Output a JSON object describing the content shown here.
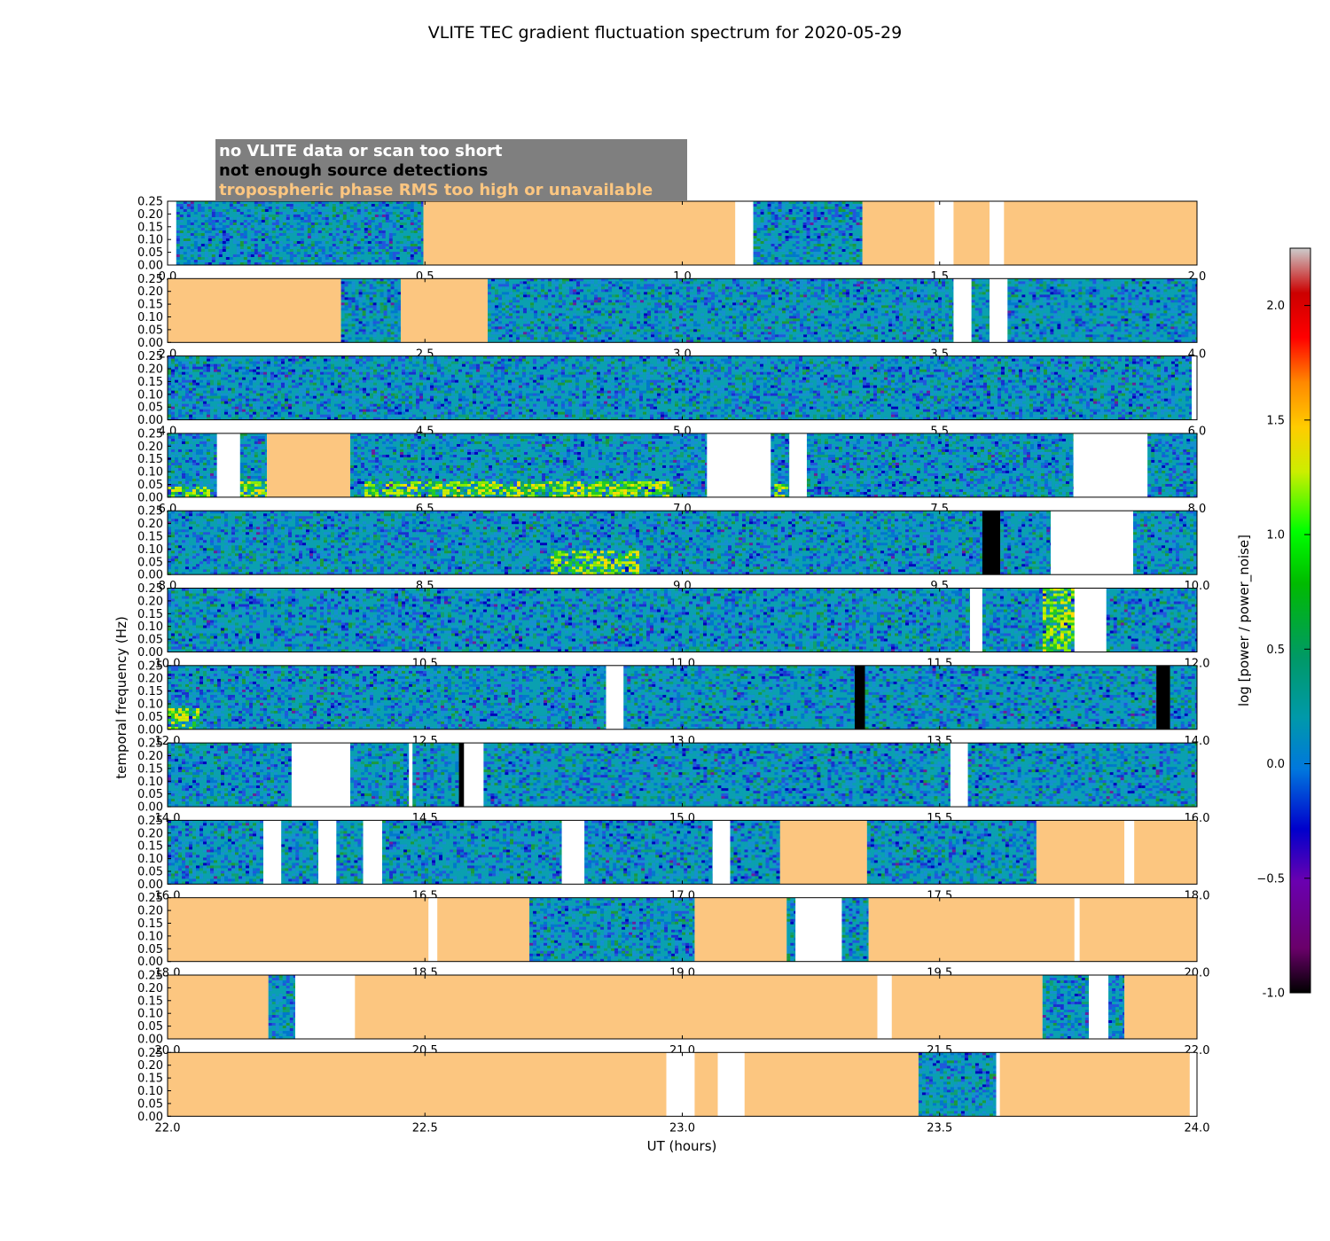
{
  "chart_data": {
    "type": "heatmap",
    "title": "VLITE TEC gradient fluctuation spectrum for 2020-05-29",
    "xlabel": "UT (hours)",
    "ylabel": "temporal frequency (Hz)",
    "colorbar_label": "log [power / power_noise]",
    "colorbar_range": [
      -1.0,
      2.25
    ],
    "colorbar_ticks": [
      "-1.0",
      "−0.5",
      "0.0",
      "0.5",
      "1.0",
      "1.5",
      "2.0"
    ],
    "ylim": [
      0,
      0.25
    ],
    "y_ticks": [
      "0.00",
      "0.05",
      "0.10",
      "0.15",
      "0.20",
      "0.25"
    ],
    "legend": [
      {
        "label": "no VLITE data or scan too short",
        "color": "#ffffff"
      },
      {
        "label": "not enough source detections",
        "color": "#000000"
      },
      {
        "label": "tropospheric phase RMS too high or unavailable",
        "color": "#fcc680"
      }
    ],
    "panels": [
      {
        "xlim": [
          0,
          2
        ],
        "x_ticks": [
          "0.0",
          "0.5",
          "1.0",
          "1.5",
          "2.0"
        ],
        "segments": [
          [
            "nodata",
            0,
            0.017
          ],
          [
            "data",
            0.017,
            0.497
          ],
          [
            "tropo",
            0.497,
            1.103
          ],
          [
            "nodata",
            1.103,
            1.138
          ],
          [
            "data",
            1.138,
            1.35
          ],
          [
            "tropo",
            1.35,
            1.49
          ],
          [
            "nodata",
            1.49,
            1.527
          ],
          [
            "tropo",
            1.527,
            1.597
          ],
          [
            "nodata",
            1.597,
            1.625
          ],
          [
            "tropo",
            1.625,
            2.0
          ]
        ]
      },
      {
        "xlim": [
          2,
          4
        ],
        "x_ticks": [
          "2.0",
          "2.5",
          "3.0",
          "3.5",
          "4.0"
        ],
        "segments": [
          [
            "tropo",
            2.0,
            2.337
          ],
          [
            "data",
            2.337,
            2.453
          ],
          [
            "tropo",
            2.453,
            2.622
          ],
          [
            "data",
            2.622,
            3.527
          ],
          [
            "nodata",
            3.527,
            3.562
          ],
          [
            "data",
            3.562,
            3.597
          ],
          [
            "nodata",
            3.597,
            3.632
          ],
          [
            "data",
            3.632,
            4.0
          ]
        ]
      },
      {
        "xlim": [
          4,
          6
        ],
        "x_ticks": [
          "4.0",
          "4.5",
          "5.0",
          "5.5",
          "6.0"
        ],
        "segments": [
          [
            "data",
            4.0,
            5.99
          ],
          [
            "nodata",
            5.99,
            6.0
          ]
        ]
      },
      {
        "xlim": [
          6,
          8
        ],
        "x_ticks": [
          "6.0",
          "6.5",
          "7.0",
          "7.5",
          "8.0"
        ],
        "segments": [
          [
            "data",
            6.0,
            6.096
          ],
          [
            "nodata",
            6.096,
            6.141
          ],
          [
            "data",
            6.141,
            6.193
          ],
          [
            "tropo",
            6.193,
            6.355
          ],
          [
            "data",
            6.355,
            7.048
          ],
          [
            "nodata",
            7.048,
            7.172
          ],
          [
            "data",
            7.172,
            7.208
          ],
          [
            "nodata",
            7.208,
            7.242
          ],
          [
            "data",
            7.242,
            7.76
          ],
          [
            "nodata",
            7.76,
            7.904
          ],
          [
            "data",
            7.904,
            8.0
          ]
        ]
      },
      {
        "xlim": [
          8,
          10
        ],
        "x_ticks": [
          "8.0",
          "8.5",
          "9.0",
          "9.5",
          "10.0"
        ],
        "segments": [
          [
            "data",
            8.0,
            9.583
          ],
          [
            "black",
            9.583,
            9.618
          ],
          [
            "data",
            9.618,
            9.716
          ],
          [
            "nodata",
            9.716,
            9.876
          ],
          [
            "data",
            9.876,
            10.0
          ]
        ]
      },
      {
        "xlim": [
          10,
          12
        ],
        "x_ticks": [
          "10.0",
          "10.5",
          "11.0",
          "11.5",
          "12.0"
        ],
        "segments": [
          [
            "data",
            10.0,
            11.559
          ],
          [
            "nodata",
            11.559,
            11.583
          ],
          [
            "data",
            11.583,
            11.762
          ],
          [
            "nodata",
            11.762,
            11.824
          ],
          [
            "data",
            11.824,
            12.0
          ]
        ]
      },
      {
        "xlim": [
          12,
          14
        ],
        "x_ticks": [
          "12.0",
          "12.5",
          "13.0",
          "13.5",
          "14.0"
        ],
        "segments": [
          [
            "data",
            12.0,
            12.852
          ],
          [
            "nodata",
            12.852,
            12.886
          ],
          [
            "data",
            12.886,
            13.335
          ],
          [
            "black",
            13.335,
            13.355
          ],
          [
            "data",
            13.355,
            13.921
          ],
          [
            "black",
            13.921,
            13.948
          ],
          [
            "data",
            13.948,
            14.0
          ]
        ]
      },
      {
        "xlim": [
          14,
          16
        ],
        "x_ticks": [
          "14.0",
          "14.5",
          "15.0",
          "15.5",
          "16.0"
        ],
        "segments": [
          [
            "data",
            14.0,
            14.241
          ],
          [
            "nodata",
            14.241,
            14.355
          ],
          [
            "data",
            14.355,
            14.469
          ],
          [
            "nodata",
            14.469,
            14.476
          ],
          [
            "data",
            14.476,
            14.566
          ],
          [
            "black",
            14.566,
            14.576
          ],
          [
            "nodata",
            14.576,
            14.614
          ],
          [
            "data",
            14.614,
            15.521
          ],
          [
            "nodata",
            15.521,
            15.555
          ],
          [
            "data",
            15.555,
            16.0
          ]
        ]
      },
      {
        "xlim": [
          16,
          18
        ],
        "x_ticks": [
          "16.0",
          "16.5",
          "17.0",
          "17.5",
          "18.0"
        ],
        "segments": [
          [
            "data",
            16.0,
            16.186
          ],
          [
            "nodata",
            16.186,
            16.221
          ],
          [
            "data",
            16.221,
            16.293
          ],
          [
            "nodata",
            16.293,
            16.328
          ],
          [
            "data",
            16.328,
            16.38
          ],
          [
            "nodata",
            16.38,
            16.417
          ],
          [
            "data",
            16.417,
            16.766
          ],
          [
            "nodata",
            16.766,
            16.81
          ],
          [
            "data",
            16.81,
            17.059
          ],
          [
            "nodata",
            17.059,
            17.093
          ],
          [
            "data",
            17.093,
            17.19
          ],
          [
            "tropo",
            17.19,
            17.359
          ],
          [
            "data",
            17.359,
            17.688
          ],
          [
            "tropo",
            17.688,
            17.859
          ],
          [
            "nodata",
            17.859,
            17.878
          ],
          [
            "tropo",
            17.878,
            18.0
          ]
        ]
      },
      {
        "xlim": [
          18,
          20
        ],
        "x_ticks": [
          "18.0",
          "18.5",
          "19.0",
          "19.5",
          "20.0"
        ],
        "segments": [
          [
            "tropo",
            18.0,
            18.507
          ],
          [
            "nodata",
            18.507,
            18.524
          ],
          [
            "tropo",
            18.524,
            18.703
          ],
          [
            "data",
            18.703,
            19.024
          ],
          [
            "tropo",
            19.024,
            19.203
          ],
          [
            "data",
            19.203,
            19.22
          ],
          [
            "nodata",
            19.22,
            19.31
          ],
          [
            "data",
            19.31,
            19.362
          ],
          [
            "tropo",
            19.362,
            19.762
          ],
          [
            "nodata",
            19.762,
            19.772
          ],
          [
            "tropo",
            19.772,
            20.0
          ]
        ]
      },
      {
        "xlim": [
          20,
          22
        ],
        "x_ticks": [
          "20.0",
          "20.5",
          "21.0",
          "21.5",
          "22.0"
        ],
        "segments": [
          [
            "tropo",
            20.0,
            20.196
          ],
          [
            "data",
            20.196,
            20.248
          ],
          [
            "nodata",
            20.248,
            20.364
          ],
          [
            "tropo",
            20.364,
            21.379
          ],
          [
            "nodata",
            21.379,
            21.407
          ],
          [
            "tropo",
            21.407,
            21.7
          ],
          [
            "data",
            21.7,
            21.79
          ],
          [
            "nodata",
            21.79,
            21.828
          ],
          [
            "data",
            21.828,
            21.859
          ],
          [
            "tropo",
            21.859,
            22.0
          ]
        ]
      },
      {
        "xlim": [
          22,
          24
        ],
        "x_ticks": [
          "22.0",
          "22.5",
          "23.0",
          "23.5",
          "24.0"
        ],
        "segments": [
          [
            "tropo",
            22.0,
            22.969
          ],
          [
            "nodata",
            22.969,
            23.024
          ],
          [
            "tropo",
            23.024,
            23.069
          ],
          [
            "nodata",
            23.069,
            23.121
          ],
          [
            "tropo",
            23.121,
            23.459
          ],
          [
            "data",
            23.459,
            23.61
          ],
          [
            "nodata",
            23.61,
            23.617
          ],
          [
            "tropo",
            23.617,
            23.986
          ],
          [
            "nodata",
            23.986,
            24.0
          ]
        ]
      }
    ],
    "enhanced_regions": [
      {
        "panel": 3,
        "x": [
          6.0,
          6.08
        ],
        "fmax": 0.04
      },
      {
        "panel": 3,
        "x": [
          6.14,
          6.19
        ],
        "fmax": 0.06
      },
      {
        "panel": 3,
        "x": [
          6.38,
          6.98
        ],
        "fmax": 0.06
      },
      {
        "panel": 3,
        "x": [
          7.16,
          7.2
        ],
        "fmax": 0.05
      },
      {
        "panel": 4,
        "x": [
          8.74,
          8.91
        ],
        "fmax": 0.09
      },
      {
        "panel": 5,
        "x": [
          11.7,
          11.76
        ],
        "fmax": 0.25
      },
      {
        "panel": 6,
        "x": [
          12.0,
          12.06
        ],
        "fmax": 0.08
      }
    ]
  }
}
